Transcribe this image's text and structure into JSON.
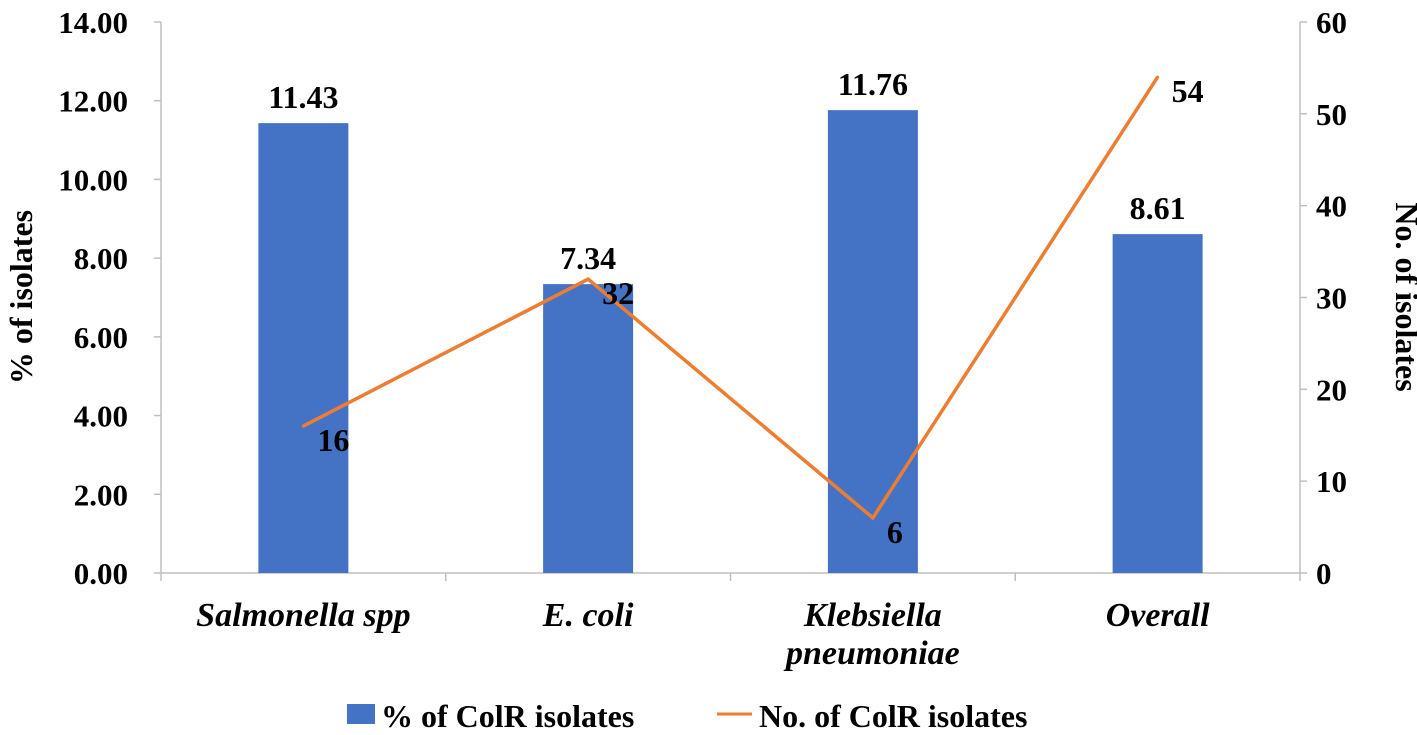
{
  "chart_data": {
    "type": "bar+line",
    "categories": [
      "Salmonella spp",
      "E. coli",
      "Klebsiella pneumoniae",
      "Overall"
    ],
    "category_lines": [
      [
        "Salmonella spp"
      ],
      [
        "E. coli"
      ],
      [
        "Klebsiella",
        "pneumoniae"
      ],
      [
        "Overall"
      ]
    ],
    "series": [
      {
        "name": "% of ColR isolates",
        "type": "bar",
        "axis": "left",
        "color": "#4472c4",
        "values": [
          11.43,
          7.34,
          11.76,
          8.61
        ],
        "labels": [
          "11.43",
          "7.34",
          "11.76",
          "8.61"
        ]
      },
      {
        "name": "No. of ColR isolates",
        "type": "line",
        "axis": "right",
        "color": "#ed7d31",
        "values": [
          16,
          32,
          6,
          54
        ],
        "labels": [
          "16",
          "32",
          "6",
          "54"
        ]
      }
    ],
    "y_left": {
      "label": "% of isolates",
      "range": [
        0,
        14
      ],
      "ticks": [
        "0.00",
        "2.00",
        "4.00",
        "6.00",
        "8.00",
        "10.00",
        "12.00",
        "14.00"
      ]
    },
    "y_right": {
      "label": "No. of isolates",
      "range": [
        0,
        60
      ],
      "ticks": [
        "0",
        "10",
        "20",
        "30",
        "40",
        "50",
        "60"
      ]
    },
    "grid": false,
    "legend": "bottom"
  }
}
